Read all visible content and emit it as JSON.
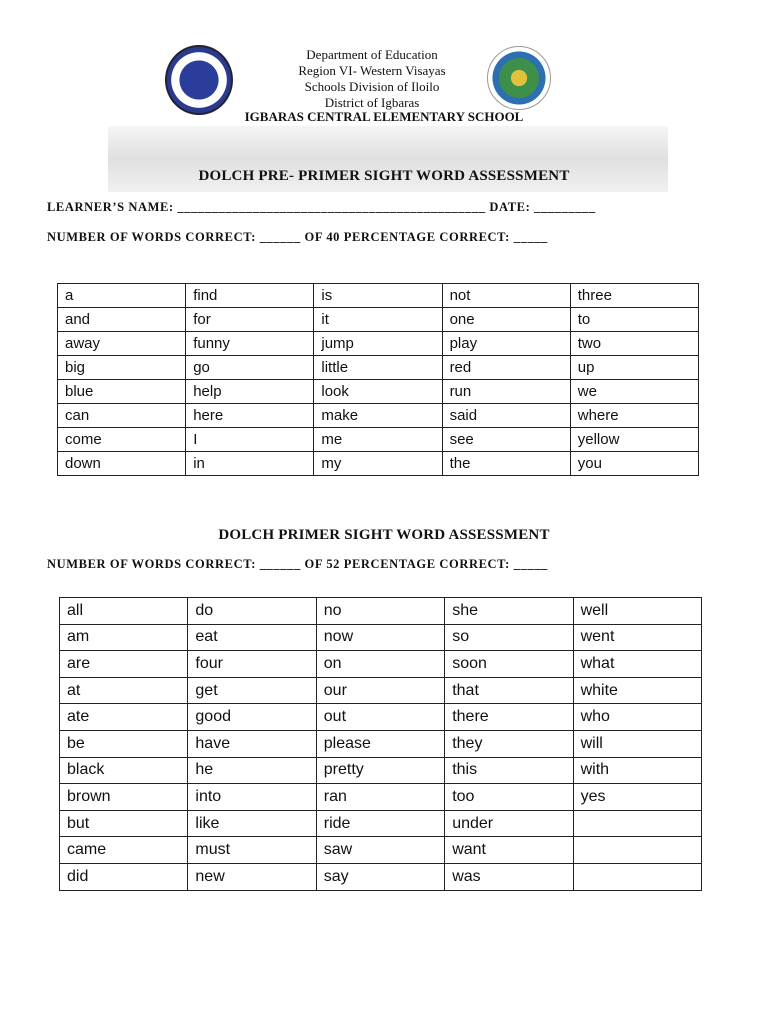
{
  "header": {
    "lines": [
      "Department of Education",
      "Region VI- Western Visayas",
      "Schools Division of Iloilo",
      "District of Igbaras"
    ],
    "school": "IGBARAS CENTRAL ELEMENTARY SCHOOL",
    "logo_left_text": "KAGAWARAN NG EDUKASYON · REPUBLIKA NG PILIPINAS",
    "logo_right_text": "IGBARAS CENTRAL ELEMENTARY SCHOOL"
  },
  "section1": {
    "title": "DOLCH PRE- PRIMER SIGHT WORD ASSESSMENT",
    "name_line": "LEARNER’S NAME: _____________________________________________ DATE: _________",
    "count_line": "NUMBER OF WORDS CORRECT: ______ OF 40 PERCENTAGE CORRECT: _____",
    "rows": [
      [
        "a",
        "find",
        "is",
        "not",
        "three"
      ],
      [
        "and",
        "for",
        "it",
        "one",
        "to"
      ],
      [
        "away",
        "funny",
        "jump",
        "play",
        "two"
      ],
      [
        "big",
        "go",
        "little",
        "red",
        "up"
      ],
      [
        "blue",
        "help",
        "look",
        "run",
        "we"
      ],
      [
        "can",
        "here",
        "make",
        "said",
        "where"
      ],
      [
        "come",
        "I",
        "me",
        "see",
        "yellow"
      ],
      [
        "down",
        "in",
        "my",
        "the",
        "you"
      ]
    ]
  },
  "section2": {
    "title": "DOLCH PRIMER SIGHT WORD ASSESSMENT",
    "count_line": "NUMBER OF WORDS CORRECT: ______ OF 52 PERCENTAGE CORRECT: _____",
    "rows": [
      [
        "all",
        "do",
        "no",
        "she",
        "well"
      ],
      [
        "am",
        "eat",
        "now",
        "so",
        "went"
      ],
      [
        "are",
        "four",
        "on",
        "soon",
        "what"
      ],
      [
        "at",
        "get",
        "our",
        "that",
        "white"
      ],
      [
        "ate",
        "good",
        "out",
        "there",
        "who"
      ],
      [
        "be",
        "have",
        "please",
        "they",
        "will"
      ],
      [
        "black",
        "he",
        "pretty",
        "this",
        "with"
      ],
      [
        "brown",
        "into",
        "ran",
        "too",
        "yes"
      ],
      [
        "but",
        "like",
        "ride",
        "under",
        ""
      ],
      [
        "came",
        "must",
        "saw",
        "want",
        ""
      ],
      [
        "did",
        "new",
        "say",
        "was",
        ""
      ]
    ]
  }
}
